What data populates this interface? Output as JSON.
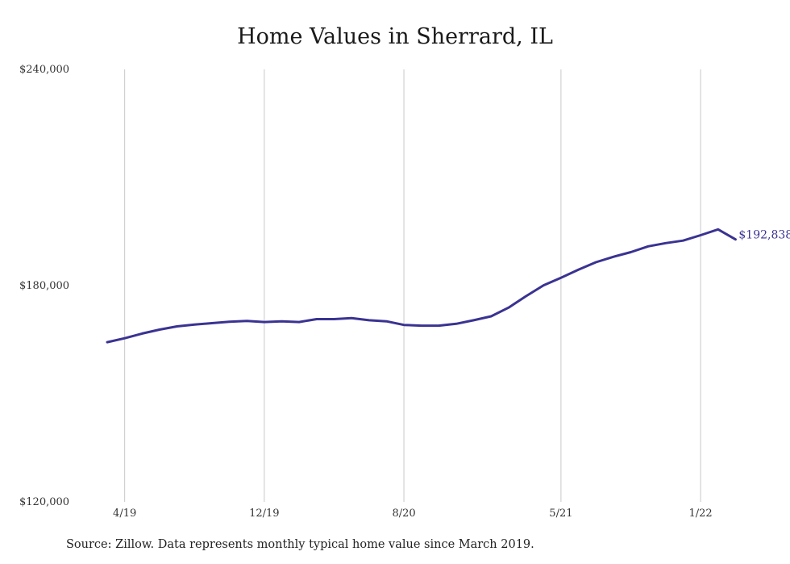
{
  "chart_data": {
    "type": "line",
    "title": "Home Values in Sherrard, IL",
    "xlabel": "",
    "ylabel": "",
    "ylim": [
      120000,
      240000
    ],
    "y_ticks": [
      {
        "value": 120000,
        "label": "$120,000"
      },
      {
        "value": 180000,
        "label": "$180,000"
      },
      {
        "value": 240000,
        "label": "$240,000"
      }
    ],
    "x_ticks": [
      {
        "date": "2019-04",
        "label": "4/19"
      },
      {
        "date": "2019-12",
        "label": "12/19"
      },
      {
        "date": "2020-08",
        "label": "8/20"
      },
      {
        "date": "2021-05",
        "label": "5/21"
      },
      {
        "date": "2022-01",
        "label": "1/22"
      }
    ],
    "grid": {
      "vertical": true,
      "horizontal": false
    },
    "line_color": "#3a3392",
    "grid_color": "#c8c8c8",
    "series": [
      {
        "x": [
          "2019-03",
          "2019-04",
          "2019-05",
          "2019-06",
          "2019-07",
          "2019-08",
          "2019-09",
          "2019-10",
          "2019-11",
          "2019-12",
          "2020-01",
          "2020-02",
          "2020-03",
          "2020-04",
          "2020-05",
          "2020-06",
          "2020-07",
          "2020-08",
          "2020-09",
          "2020-10",
          "2020-11",
          "2020-12",
          "2021-01",
          "2021-02",
          "2021-03",
          "2021-04",
          "2021-05",
          "2021-06",
          "2021-07",
          "2021-08",
          "2021-09",
          "2021-10",
          "2021-11",
          "2021-12",
          "2022-01",
          "2022-02",
          "2022-03"
        ],
        "values": [
          164300,
          165400,
          166700,
          167800,
          168700,
          169200,
          169600,
          170000,
          170200,
          169900,
          170100,
          169900,
          170700,
          170700,
          171000,
          170400,
          170100,
          169100,
          168900,
          168900,
          169400,
          170400,
          171500,
          173900,
          177100,
          180100,
          182200,
          184400,
          186500,
          188000,
          189300,
          190900,
          191800,
          192500,
          194000,
          195600,
          192838
        ]
      }
    ],
    "end_label": "$192,838",
    "source": "Source: Zillow. Data represents monthly typical home value since March 2019."
  }
}
